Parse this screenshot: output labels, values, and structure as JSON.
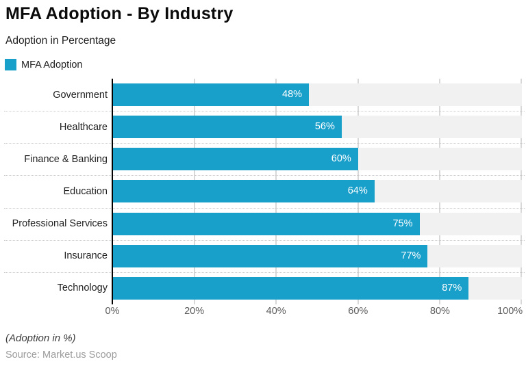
{
  "header": {
    "title": "MFA Adoption - By Industry",
    "subtitle": "Adoption in Percentage"
  },
  "legend": {
    "label": "MFA Adoption",
    "color": "#189fca"
  },
  "chart_data": {
    "type": "bar",
    "orientation": "horizontal",
    "title": "MFA Adoption - By Industry",
    "subtitle": "Adoption in Percentage",
    "series_name": "MFA Adoption",
    "categories": [
      "Government",
      "Healthcare",
      "Finance & Banking",
      "Education",
      "Professional Services",
      "Insurance",
      "Technology"
    ],
    "values": [
      48,
      56,
      60,
      64,
      75,
      77,
      87
    ],
    "value_labels": [
      "48%",
      "56%",
      "60%",
      "64%",
      "75%",
      "77%",
      "87%"
    ],
    "xlim": [
      0,
      100
    ],
    "x_tick_labels": [
      "0%",
      "20%",
      "40%",
      "60%",
      "80%",
      "100%"
    ],
    "grid": "vertical gridlines every 20%, dotted row separators",
    "legend_position": "top-left",
    "bar_color": "#189fca",
    "band_color": "#f1f1f1",
    "gridline_color": "#d8d8d8",
    "axis_line_color": "#000000"
  },
  "footer": {
    "note": "(Adoption in %)",
    "source": "Source: Market.us Scoop"
  }
}
